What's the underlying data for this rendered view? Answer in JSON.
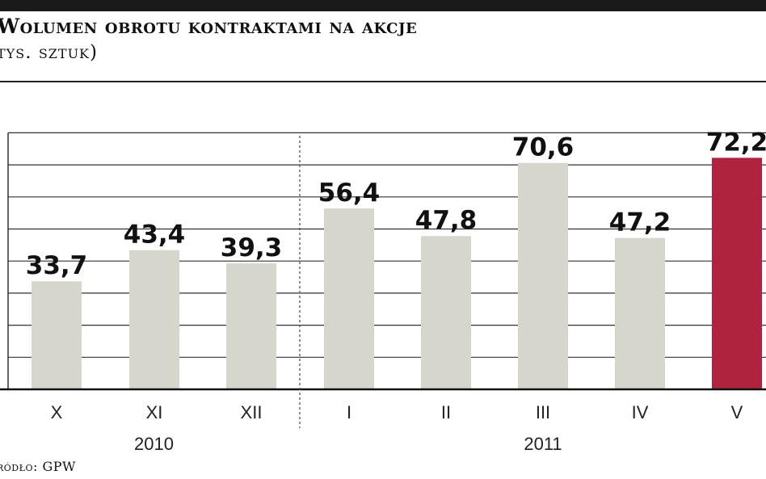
{
  "header": {
    "title": "Wolumen obrotu kontraktami na akcje",
    "subtitle": "tys. sztuk)"
  },
  "footer": {
    "source": "ródło: GPW"
  },
  "colors": {
    "bar": "#d7d6cc",
    "highlight": "#b0233f",
    "grid": "#333333"
  },
  "chart_data": {
    "type": "bar",
    "title": "Wolumen obrotu kontraktami na akcje",
    "subtitle": "tys. sztuk)",
    "categories": [
      "X",
      "XI",
      "XII",
      "I",
      "II",
      "III",
      "IV",
      "V"
    ],
    "values": [
      33.7,
      43.4,
      39.3,
      56.4,
      47.8,
      70.6,
      47.2,
      72.2
    ],
    "value_labels": [
      "33,7",
      "43,4",
      "39,3",
      "56,4",
      "47,8",
      "70,6",
      "47,2",
      "72,2"
    ],
    "groups": [
      {
        "label": "2010",
        "categories": [
          "X",
          "XI",
          "XII"
        ]
      },
      {
        "label": "2011",
        "categories": [
          "I",
          "II",
          "III",
          "IV",
          "V"
        ]
      }
    ],
    "highlight_index": 7,
    "ylim": [
      0,
      80
    ],
    "grid": true,
    "xlabel": "",
    "ylabel": ""
  }
}
